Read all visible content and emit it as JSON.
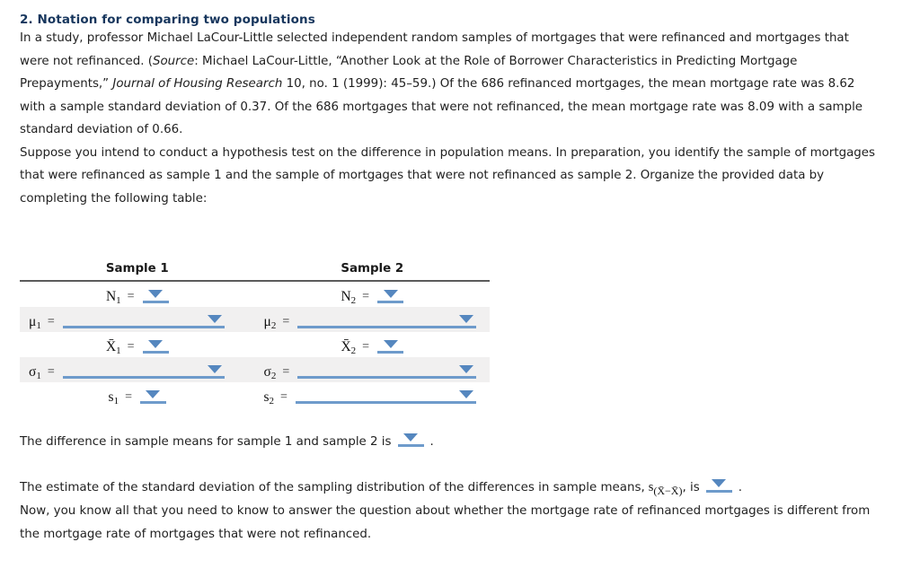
{
  "title": "2. Notation for comparing two populations",
  "colors": {
    "title_navy": "#17365d",
    "accent_blue": "#5587bf",
    "underline_blue": "#6e9bcb",
    "row_shade_gray": "#f1f0f0",
    "header_rule_gray": "#5b5b5b"
  },
  "paragraph1": {
    "run1": "In a study, professor Michael LaCour-Little selected independent random samples of mortgages that were refinanced and mortgages that were not refinanced. (",
    "run2_italic": "Source",
    "run3": ": Michael LaCour-Little, “Another Look at the Role of Borrower Characteristics in Predicting Mortgage Prepayments,” ",
    "run4_italic": "Journal of Housing Research",
    "run5": " 10, no. 1 (1999): 45–59.) Of the 686 refinanced mortgages, the mean mortgage rate was 8.62 with a sample standard deviation of 0.37. Of the 686 mortgages that were not refinanced, the mean mortgage rate was 8.09 with a sample standard deviation of 0.66."
  },
  "paragraph2": "Suppose you intend to conduct a hypothesis test on the difference in population means. In preparation, you identify the sample of mortgages that were refinanced as sample 1 and the sample of mortgages that were not refinanced as sample 2. Organize the provided data by completing the following table:",
  "table": {
    "headers": [
      "Sample 1",
      "Sample 2"
    ],
    "eq": "=",
    "rows": [
      {
        "shade": "plain",
        "left": {
          "sym": "N",
          "sub": "1",
          "size": "small"
        },
        "right": {
          "sym": "N",
          "sub": "2",
          "size": "small"
        }
      },
      {
        "shade": "gray",
        "left": {
          "sym": "μ",
          "sub": "1",
          "size": "long"
        },
        "right": {
          "sym": "μ",
          "sub": "2",
          "size": "long"
        }
      },
      {
        "shade": "plain",
        "left": {
          "sym": "X̄",
          "sub": "1",
          "size": "small"
        },
        "right": {
          "sym": "X̄",
          "sub": "2",
          "size": "small"
        }
      },
      {
        "shade": "gray",
        "left": {
          "sym": "σ",
          "sub": "1",
          "size": "long"
        },
        "right": {
          "sym": "σ",
          "sub": "2",
          "size": "long"
        }
      },
      {
        "shade": "plain",
        "left": {
          "sym": "s",
          "sub": "1",
          "size": "small"
        },
        "right": {
          "sym": "s",
          "sub": "2",
          "size": "long"
        }
      }
    ]
  },
  "inline_dropdown_size": "small",
  "sentence_diff": {
    "before": "The difference in sample means for sample 1 and sample 2 is",
    "after": "."
  },
  "sentence_sd": {
    "before": "The estimate of the standard deviation of the sampling distribution of the differences in sample means,",
    "notation_base": "s",
    "notation_sub": "(X̄−X̄)",
    "mid": ", is",
    "after": "."
  },
  "paragraph3": "Now, you know all that you need to know to answer the question about whether the mortgage rate of refinanced mortgages is different from the mortgage rate of mortgages that were not refinanced."
}
